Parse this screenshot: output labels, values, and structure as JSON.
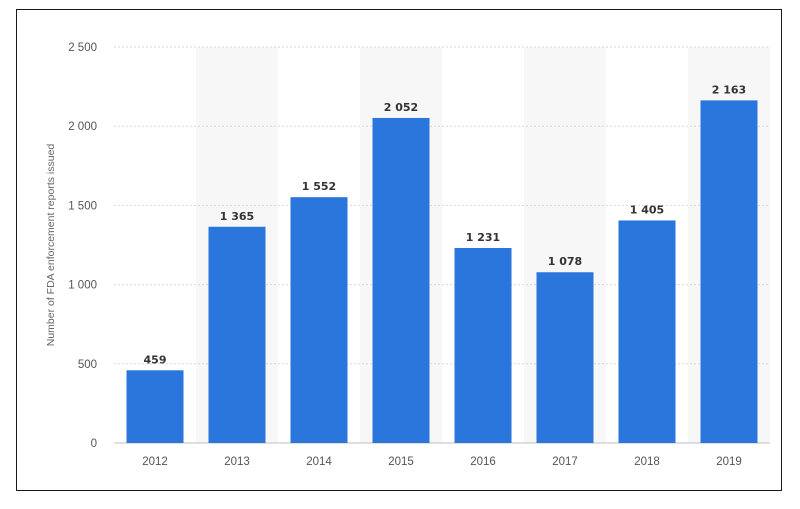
{
  "chart_data": {
    "type": "bar",
    "title": "",
    "xlabel": "",
    "ylabel": "Number of FDA enforcement reports issued",
    "categories": [
      "2012",
      "2013",
      "2014",
      "2015",
      "2016",
      "2017",
      "2018",
      "2019"
    ],
    "values": [
      459,
      1365,
      1552,
      2052,
      1231,
      1078,
      1405,
      2163
    ],
    "value_labels": [
      "459",
      "1 365",
      "1 552",
      "2 052",
      "1 231",
      "1 078",
      "1 405",
      "2 163"
    ],
    "ylim": [
      0,
      2500
    ],
    "yticks": [
      0,
      500,
      1000,
      1500,
      2000,
      2500
    ],
    "ytick_labels": [
      "0",
      "500",
      "1 000",
      "1 500",
      "2 000",
      "2 500"
    ],
    "grid": true,
    "legend": "none",
    "colors": {
      "bar": "#2a76dd",
      "band": "#f7f7f7",
      "grid": "#d9d9d9"
    }
  }
}
